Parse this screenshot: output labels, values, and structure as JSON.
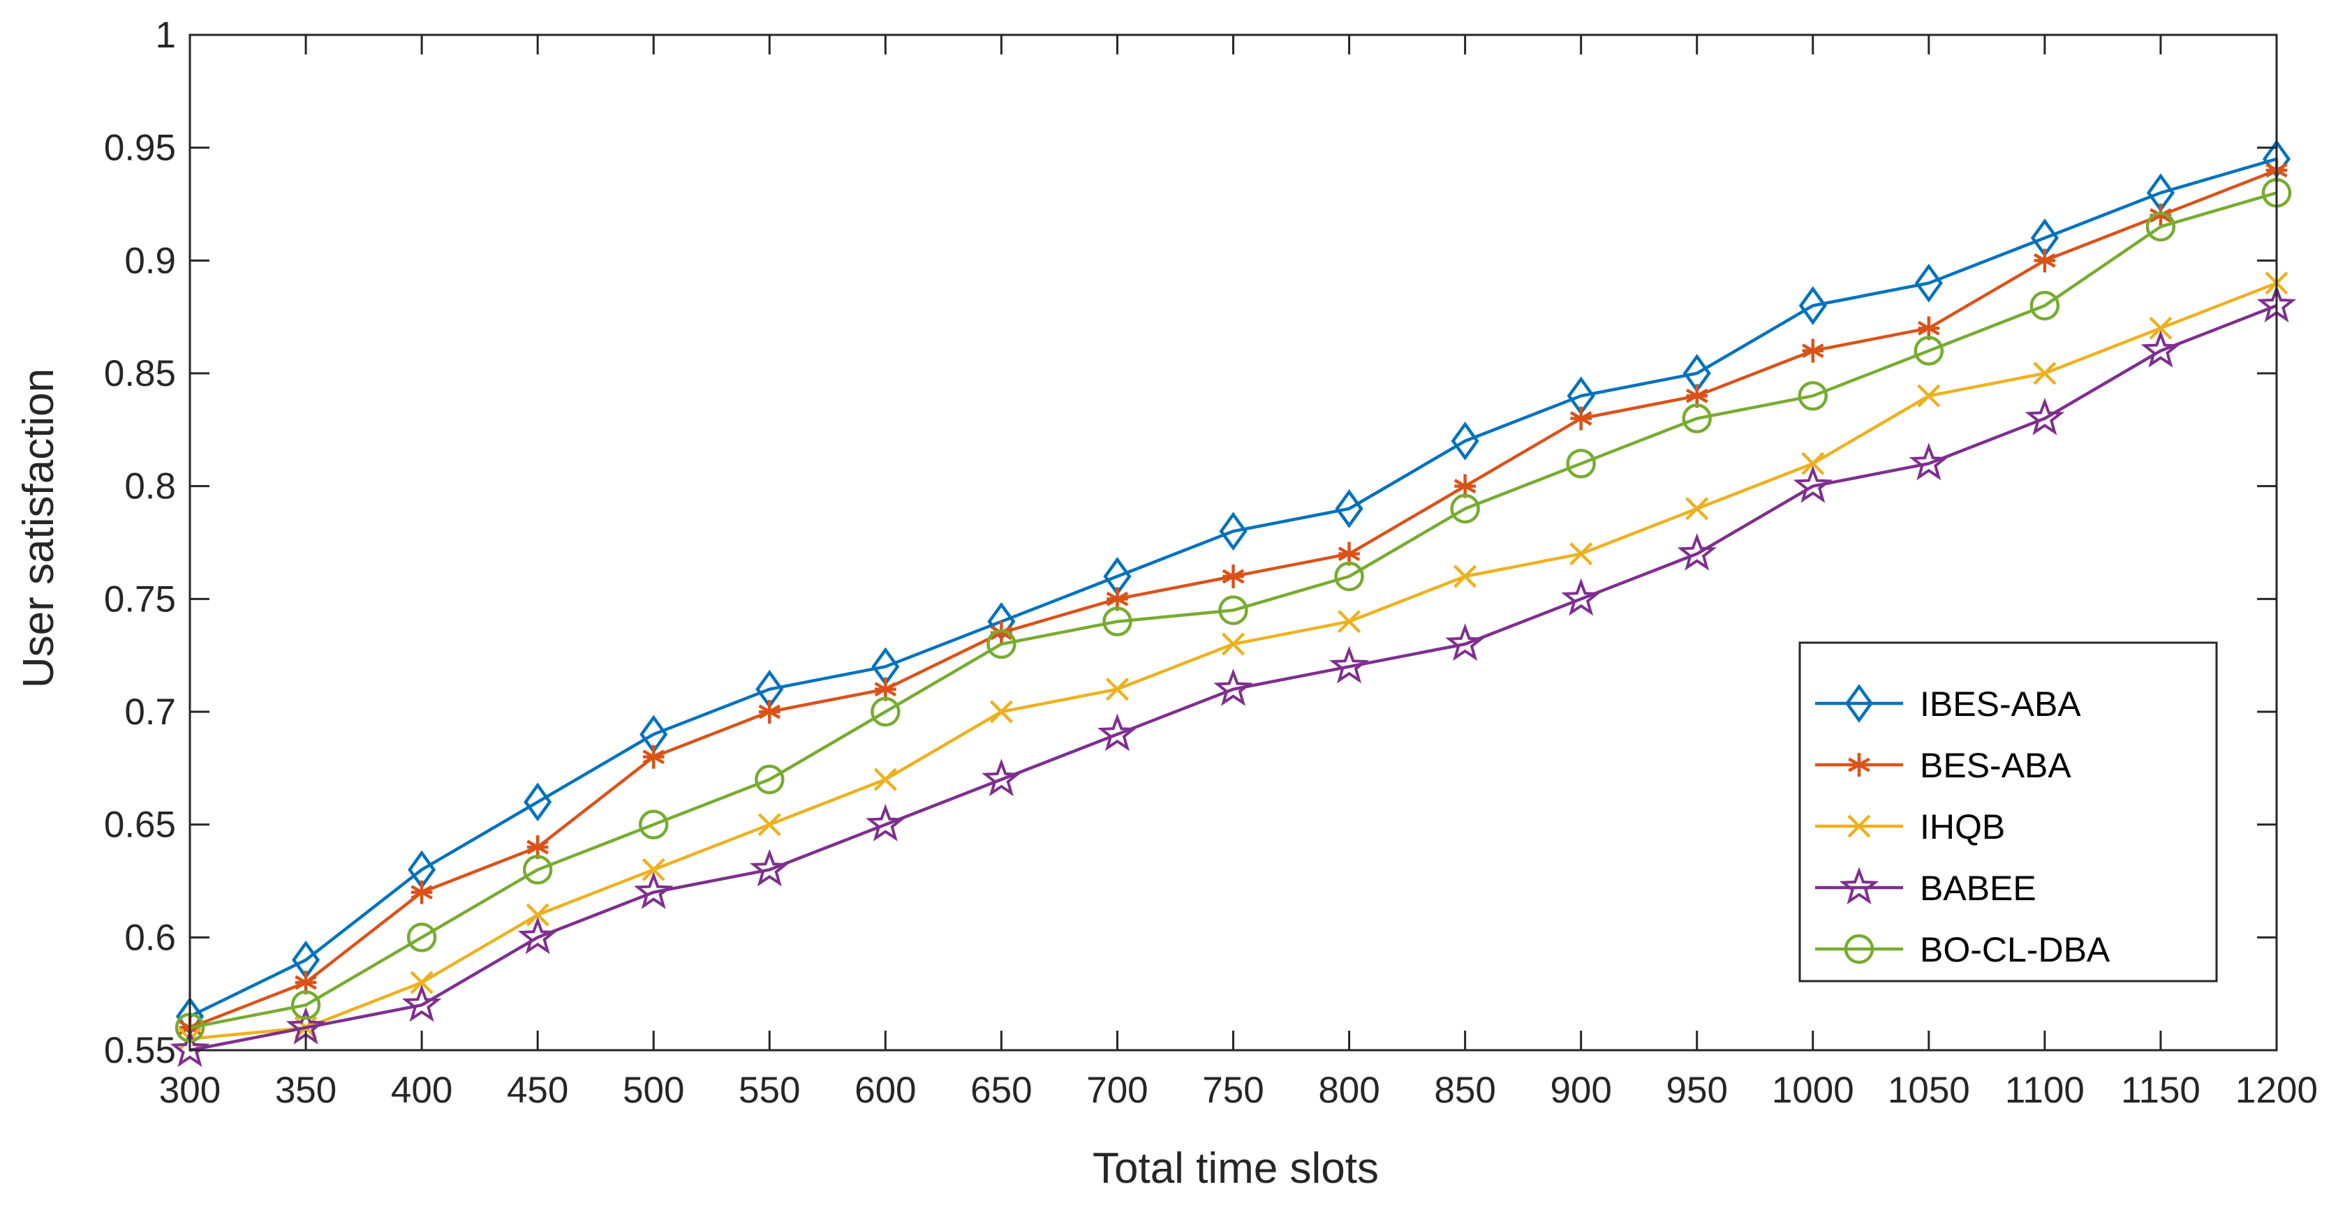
{
  "chart_data": {
    "type": "line",
    "title": "",
    "xlabel": "Total time slots",
    "ylabel": "User satisfaction",
    "xlim": [
      300,
      1200
    ],
    "ylim": [
      0.55,
      1
    ],
    "grid": false,
    "legend_position": "bottom-right",
    "x": [
      300,
      350,
      400,
      450,
      500,
      550,
      600,
      650,
      700,
      750,
      800,
      850,
      900,
      950,
      1000,
      1050,
      1100,
      1150,
      1200
    ],
    "x_ticks": [
      "300",
      "350",
      "400",
      "450",
      "500",
      "550",
      "600",
      "650",
      "700",
      "750",
      "800",
      "850",
      "900",
      "950",
      "1000",
      "1050",
      "1100",
      "1150",
      "1200"
    ],
    "y_ticks": [
      "0.55",
      "0.6",
      "0.65",
      "0.7",
      "0.75",
      "0.8",
      "0.85",
      "0.9",
      "0.95",
      "1"
    ],
    "y_tick_values": [
      0.55,
      0.6,
      0.65,
      0.7,
      0.75,
      0.8,
      0.85,
      0.9,
      0.95,
      1
    ],
    "series": [
      {
        "name": "IBES-ABA",
        "color": "#0072BD",
        "marker": "diamond",
        "values": [
          0.565,
          0.59,
          0.63,
          0.66,
          0.69,
          0.71,
          0.72,
          0.74,
          0.76,
          0.78,
          0.79,
          0.82,
          0.84,
          0.85,
          0.88,
          0.89,
          0.91,
          0.93,
          0.945
        ]
      },
      {
        "name": "BES-ABA",
        "color": "#D95319",
        "marker": "asterisk",
        "values": [
          0.56,
          0.58,
          0.62,
          0.64,
          0.68,
          0.7,
          0.71,
          0.735,
          0.75,
          0.76,
          0.77,
          0.8,
          0.83,
          0.84,
          0.86,
          0.87,
          0.9,
          0.92,
          0.94
        ]
      },
      {
        "name": "IHQB",
        "color": "#EDB120",
        "marker": "x",
        "values": [
          0.555,
          0.56,
          0.58,
          0.61,
          0.63,
          0.65,
          0.67,
          0.7,
          0.71,
          0.73,
          0.74,
          0.76,
          0.77,
          0.79,
          0.81,
          0.84,
          0.85,
          0.87,
          0.89
        ]
      },
      {
        "name": "BABEE",
        "color": "#7E2F8E",
        "marker": "pentagram",
        "values": [
          0.55,
          0.56,
          0.57,
          0.6,
          0.62,
          0.63,
          0.65,
          0.67,
          0.69,
          0.71,
          0.72,
          0.73,
          0.75,
          0.77,
          0.8,
          0.81,
          0.83,
          0.86,
          0.88
        ]
      },
      {
        "name": "BO-CL-DBA",
        "color": "#77AC30",
        "marker": "circle",
        "values": [
          0.56,
          0.57,
          0.6,
          0.63,
          0.65,
          0.67,
          0.7,
          0.73,
          0.74,
          0.745,
          0.76,
          0.79,
          0.81,
          0.83,
          0.84,
          0.86,
          0.88,
          0.915,
          0.93
        ]
      }
    ]
  }
}
